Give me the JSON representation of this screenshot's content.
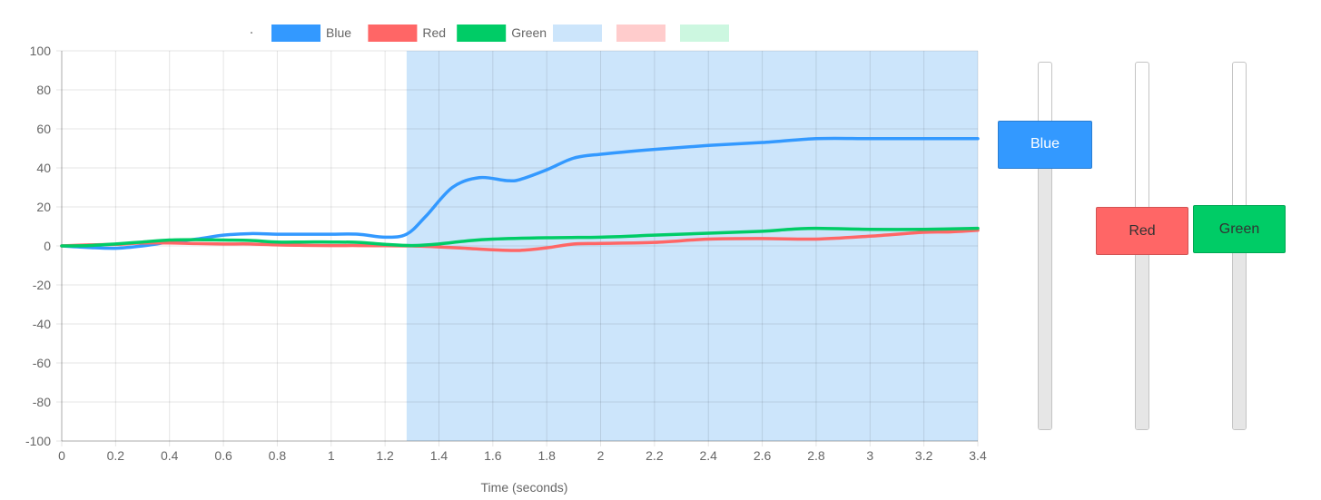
{
  "chart_data": {
    "type": "line",
    "xlabel": "Time (seconds)",
    "ylabel": "",
    "xlim": [
      0,
      3.4
    ],
    "ylim": [
      -100,
      100
    ],
    "xticks": [
      "0",
      "0.2",
      "0.4",
      "0.6",
      "0.8",
      "1",
      "1.2",
      "1.4",
      "1.6",
      "1.8",
      "2",
      "2.2",
      "2.4",
      "2.6",
      "2.8",
      "3",
      "3.2",
      "3.4"
    ],
    "yticks": [
      "100",
      "80",
      "60",
      "40",
      "20",
      "0",
      "-20",
      "-40",
      "-60",
      "-80",
      "-100"
    ],
    "grid": true,
    "legend_position": "top",
    "legend_extra_swatches": [
      {
        "color": "#cce5fb"
      },
      {
        "color": "#ffcccc"
      },
      {
        "color": "#ccf7e0"
      }
    ],
    "shaded_region": {
      "x_start": 1.28,
      "x_end": 3.4,
      "color": "#cce5fb"
    },
    "series": [
      {
        "name": "Blue",
        "color": "#3399ff",
        "points": [
          [
            0,
            0
          ],
          [
            0.1,
            -0.8
          ],
          [
            0.2,
            -1.2
          ],
          [
            0.3,
            0
          ],
          [
            0.4,
            2
          ],
          [
            0.5,
            3.5
          ],
          [
            0.6,
            5.5
          ],
          [
            0.7,
            6.3
          ],
          [
            0.8,
            6
          ],
          [
            0.9,
            6
          ],
          [
            1,
            6
          ],
          [
            1.1,
            6
          ],
          [
            1.2,
            4.5
          ],
          [
            1.28,
            6
          ],
          [
            1.35,
            15
          ],
          [
            1.45,
            30
          ],
          [
            1.55,
            35
          ],
          [
            1.65,
            33.5
          ],
          [
            1.7,
            34
          ],
          [
            1.8,
            39
          ],
          [
            1.9,
            45
          ],
          [
            2,
            47
          ],
          [
            2.2,
            49.5
          ],
          [
            2.4,
            51.5
          ],
          [
            2.6,
            53
          ],
          [
            2.8,
            55
          ],
          [
            3,
            55
          ],
          [
            3.2,
            55
          ],
          [
            3.4,
            55
          ]
        ]
      },
      {
        "name": "Red",
        "color": "#ff6666",
        "points": [
          [
            0,
            0
          ],
          [
            0.1,
            0.5
          ],
          [
            0.2,
            0.8
          ],
          [
            0.3,
            1.5
          ],
          [
            0.4,
            1.5
          ],
          [
            0.5,
            1.2
          ],
          [
            0.6,
            1
          ],
          [
            0.7,
            1
          ],
          [
            0.8,
            0.5
          ],
          [
            0.9,
            0.3
          ],
          [
            1,
            0.2
          ],
          [
            1.1,
            0.2
          ],
          [
            1.2,
            0.1
          ],
          [
            1.3,
            0
          ],
          [
            1.4,
            -0.5
          ],
          [
            1.5,
            -1.2
          ],
          [
            1.6,
            -2
          ],
          [
            1.7,
            -2.3
          ],
          [
            1.8,
            -1
          ],
          [
            1.9,
            1
          ],
          [
            2,
            1.3
          ],
          [
            2.2,
            1.8
          ],
          [
            2.4,
            3.5
          ],
          [
            2.6,
            3.8
          ],
          [
            2.8,
            3.5
          ],
          [
            3,
            5
          ],
          [
            3.2,
            7
          ],
          [
            3.3,
            7.2
          ],
          [
            3.4,
            8
          ]
        ]
      },
      {
        "name": "Green",
        "color": "#00cc66",
        "points": [
          [
            0,
            0
          ],
          [
            0.1,
            0.2
          ],
          [
            0.2,
            1
          ],
          [
            0.3,
            2
          ],
          [
            0.4,
            3
          ],
          [
            0.5,
            3.2
          ],
          [
            0.6,
            3
          ],
          [
            0.7,
            2.8
          ],
          [
            0.8,
            2
          ],
          [
            0.9,
            2
          ],
          [
            1,
            2
          ],
          [
            1.1,
            1.8
          ],
          [
            1.2,
            0.8
          ],
          [
            1.3,
            0.2
          ],
          [
            1.4,
            1
          ],
          [
            1.5,
            2.5
          ],
          [
            1.6,
            3.5
          ],
          [
            1.8,
            4.2
          ],
          [
            2,
            4.5
          ],
          [
            2.2,
            5.5
          ],
          [
            2.4,
            6.5
          ],
          [
            2.6,
            7.5
          ],
          [
            2.7,
            8.5
          ],
          [
            2.8,
            9
          ],
          [
            3,
            8.5
          ],
          [
            3.2,
            8.5
          ],
          [
            3.4,
            9
          ]
        ]
      }
    ]
  },
  "sliders": [
    {
      "label": "Blue",
      "color": "#3399ff",
      "text_color": "#ffffff",
      "value": 55
    },
    {
      "label": "Red",
      "color": "#ff6666",
      "text_color": "#333333",
      "value": 8
    },
    {
      "label": "Green",
      "color": "#00cc66",
      "text_color": "#333333",
      "value": 9
    }
  ]
}
